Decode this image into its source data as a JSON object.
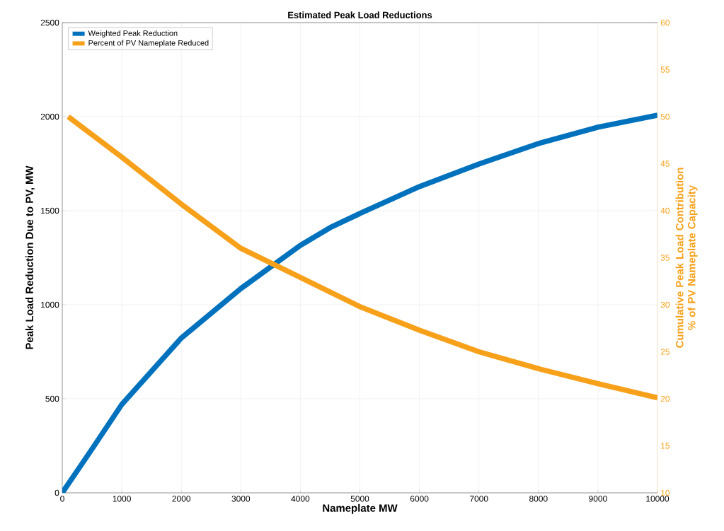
{
  "chart_data": {
    "type": "line",
    "title": "Estimated Peak Load Reductions",
    "xlabel": "Nameplate MW",
    "ylabel": "Peak Load Reduction Due to PV, MW",
    "y2label": "Cumulative Peak Load Contribution % of PV Nameplate Capacity",
    "xlim": [
      0,
      10000
    ],
    "xticks": [
      0,
      1000,
      2000,
      3000,
      4000,
      5000,
      6000,
      7000,
      8000,
      9000,
      10000
    ],
    "ylim": [
      0,
      2500
    ],
    "yticks": [
      0,
      500,
      1000,
      1500,
      2000,
      2500
    ],
    "y2lim": [
      10,
      60
    ],
    "y2ticks": [
      10,
      15,
      20,
      25,
      30,
      35,
      40,
      45,
      50,
      55,
      60
    ],
    "grid": true,
    "legend": "top left",
    "line_style": "solid",
    "marker": "none",
    "series": [
      {
        "name": "Weighted Peak Reduction",
        "color": "#0072bd",
        "x": [
          0,
          500,
          1000,
          1500,
          2000,
          3000,
          4000,
          4500,
          5000,
          6000,
          7000,
          8000,
          9000,
          10000
        ],
        "values": [
          0,
          233,
          470,
          647,
          823,
          1086,
          1316,
          1410,
          1485,
          1628,
          1748,
          1857,
          1944,
          2008
        ]
      },
      {
        "name": "Percent of PV Nameplate Reduced",
        "color": "#f7a11a",
        "axis": "y2",
        "x": [
          100,
          1000,
          2000,
          3000,
          4000,
          5000,
          6000,
          7000,
          8000,
          9000,
          10000
        ],
        "values": [
          50.0,
          45.7,
          40.7,
          36.0,
          32.9,
          29.8,
          27.3,
          25.0,
          23.2,
          21.6,
          20.1
        ]
      }
    ]
  }
}
